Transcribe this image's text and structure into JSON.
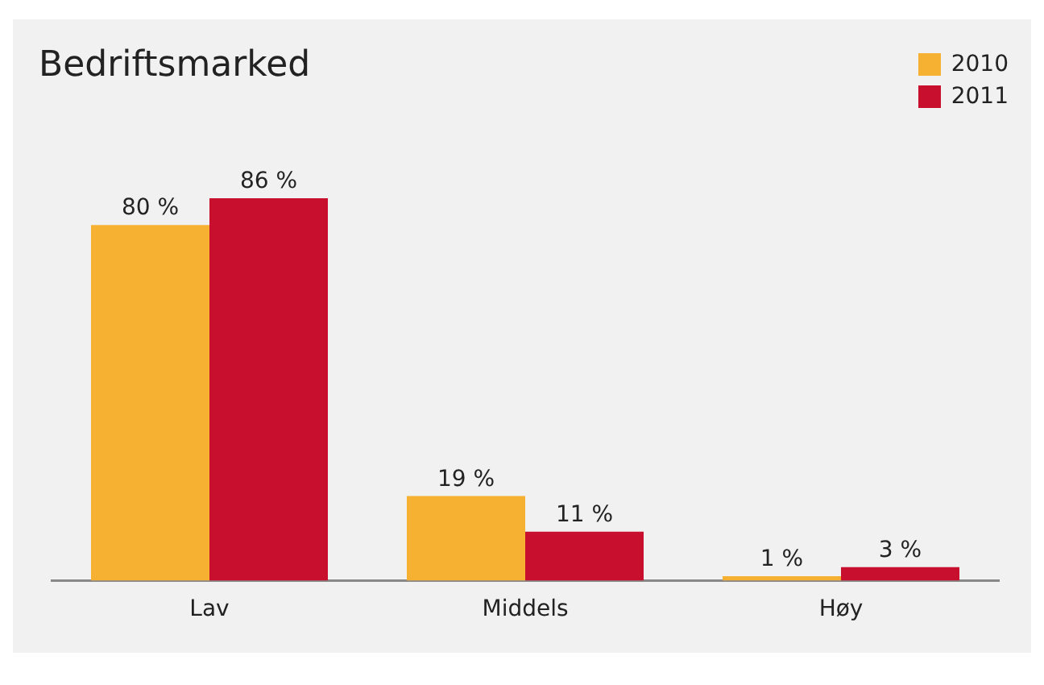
{
  "chart_data": {
    "type": "bar",
    "title": "Bedriftsmarked",
    "categories": [
      "Lav",
      "Middels",
      "Høy"
    ],
    "series": [
      {
        "name": "2010",
        "color": "#f6b133",
        "values": [
          80,
          19,
          1
        ],
        "value_labels": [
          "80 %",
          "19 %",
          "1 %"
        ]
      },
      {
        "name": "2011",
        "color": "#c8102e",
        "values": [
          86,
          11,
          3
        ],
        "value_labels": [
          "86 %",
          "11 %",
          "3 %"
        ]
      }
    ],
    "legend": "top right",
    "grid": false
  }
}
